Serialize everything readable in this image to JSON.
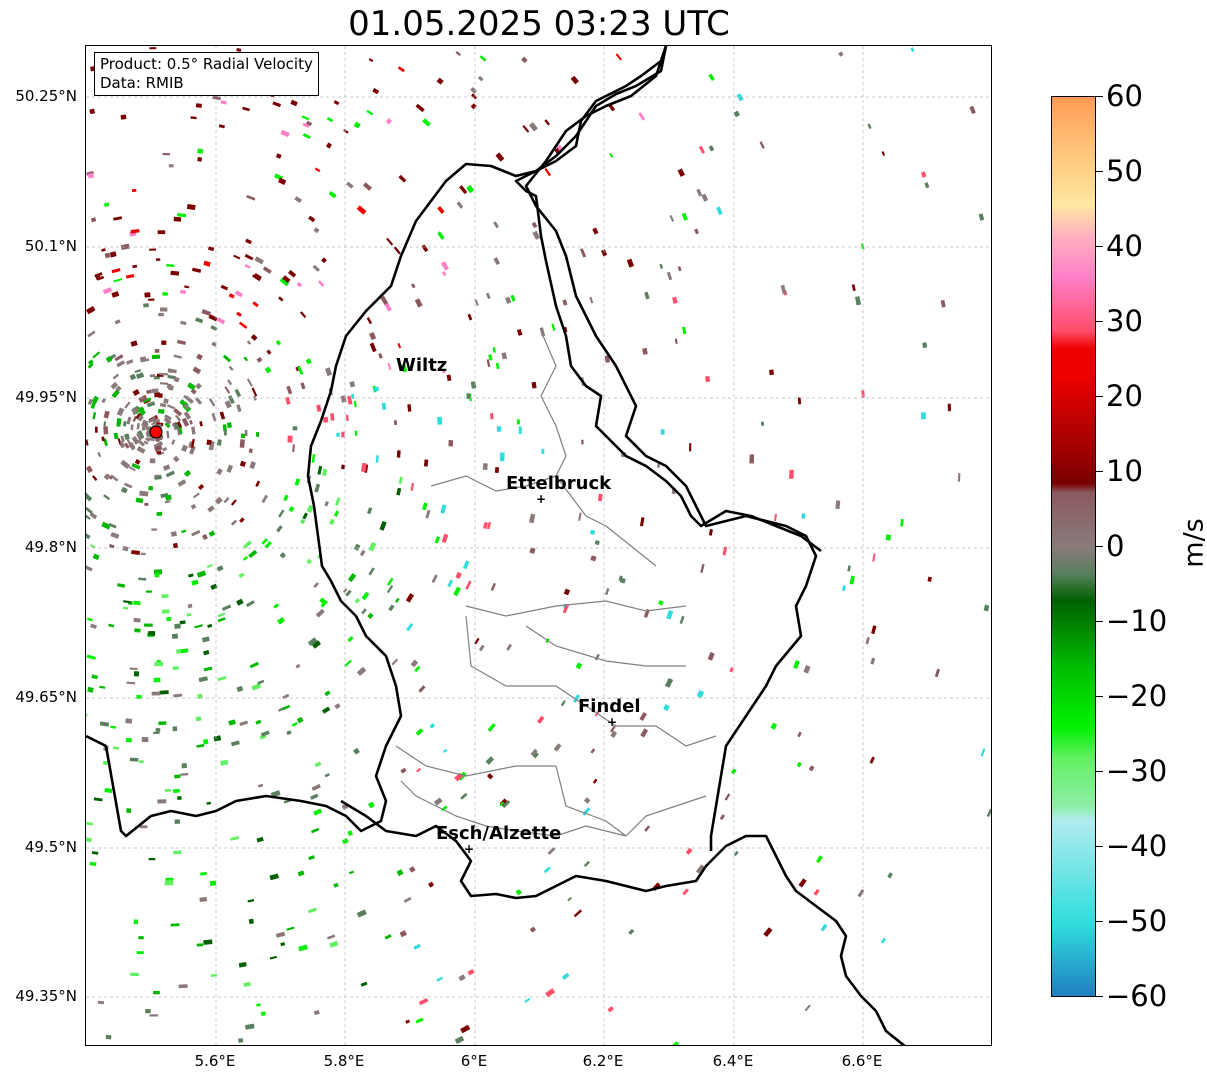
{
  "title": "01.05.2025 03:23 UTC",
  "info": {
    "line1": "Product: 0.5° Radial Velocity",
    "line2": "Data: RMIB"
  },
  "axes": {
    "lat_labels": [
      "50.25°N",
      "50.1°N",
      "49.95°N",
      "49.8°N",
      "49.65°N",
      "49.5°N",
      "49.35°N"
    ],
    "lon_labels": [
      "5.6°E",
      "5.8°E",
      "6°E",
      "6.2°E",
      "6.4°E",
      "6.6°E"
    ]
  },
  "cities": [
    {
      "name": "Wiltz",
      "marker": false
    },
    {
      "name": "Ettelbruck",
      "marker": true
    },
    {
      "name": "Findel",
      "marker": true
    },
    {
      "name": "Esch/Alzette",
      "marker": true
    }
  ],
  "colorbar": {
    "unit": "m/s",
    "ticks": [
      "60",
      "50",
      "40",
      "30",
      "20",
      "10",
      "0",
      "−10",
      "−20",
      "−30",
      "−40",
      "−50",
      "−60"
    ],
    "min": -60,
    "max": 60,
    "colors": {
      "top_orange": "#ff9a55",
      "light_orange": "#ffc47a",
      "pale_yellow": "#ffe8a0",
      "pink_light": "#ffb0c0",
      "pink": "#ff80c8",
      "salmon_red": "#ff4f6a",
      "red": "#ee0000",
      "dark_red": "#7a0000",
      "brown_grey": "#8a5a60",
      "grey": "#8a7a7a",
      "grey_green": "#5a8060",
      "dark_green": "#006000",
      "green": "#00b800",
      "bright_green": "#00f000",
      "light_green": "#60f060",
      "pale_green": "#90eeaa",
      "pale_cyan": "#b0ecf0",
      "cyan": "#30dcdc",
      "blue": "#2080c0"
    }
  },
  "radar_site": {
    "color": "#ff0000"
  }
}
